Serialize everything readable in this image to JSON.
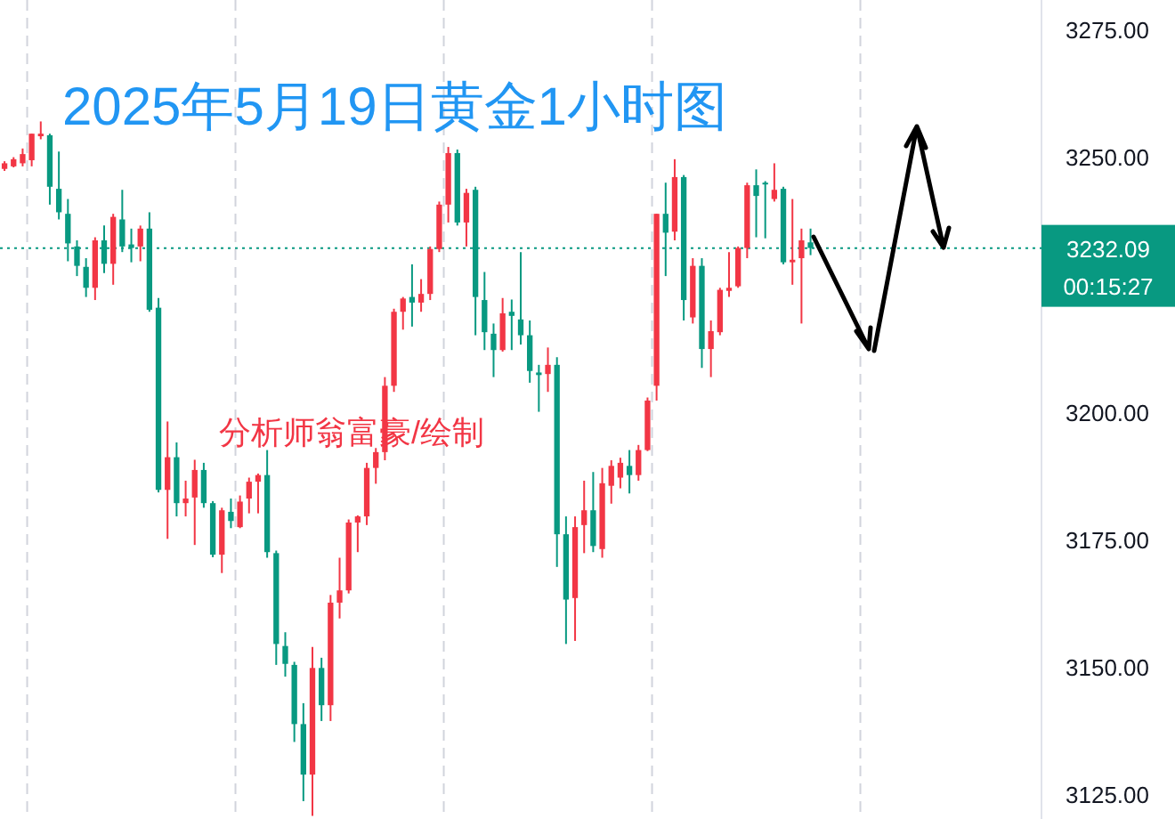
{
  "chart_data": {
    "type": "candlestick",
    "title": "2025年5月19日黄金1小时图",
    "annotations": [
      "分析师翁富豪/绘制",
      "00:15:27"
    ],
    "categories": [
      null,
      null,
      null,
      null,
      null,
      null,
      null,
      null,
      null,
      null,
      null,
      null,
      null,
      null,
      null,
      null,
      null,
      null,
      null,
      null,
      null,
      null,
      null,
      null,
      null,
      null,
      null,
      null,
      null,
      null,
      null,
      null,
      null,
      null,
      null,
      null,
      null,
      null,
      null,
      null,
      null,
      null,
      null,
      null,
      null,
      null,
      null,
      null,
      null,
      null,
      null,
      null,
      null,
      null,
      null,
      null,
      null,
      null,
      null,
      null,
      null,
      null,
      null,
      null,
      null,
      null,
      null,
      null,
      null,
      null,
      null,
      null,
      null,
      null,
      null,
      null,
      null,
      null,
      null,
      null,
      null,
      null,
      null,
      null,
      null,
      null,
      null,
      null,
      null,
      null,
      null,
      null,
      null,
      null,
      null,
      null,
      null,
      null,
      null,
      null,
      null,
      null,
      null,
      null,
      null,
      null,
      null,
      null,
      null,
      null,
      null,
      null,
      null,
      null,
      null
    ],
    "ohlc": [
      [
        3247.6,
        3249.1,
        3247.2,
        3248.7
      ],
      [
        3248.1,
        3249.9,
        3247.9,
        3249.5
      ],
      [
        3248.7,
        3251.6,
        3248.1,
        3250.5
      ],
      [
        3249.3,
        3254.5,
        3248.1,
        3254.5
      ],
      [
        3254.0,
        3256.9,
        3253.4,
        3254.5
      ],
      [
        3254.2,
        3254.5,
        3240.6,
        3244.1
      ],
      [
        3243.7,
        3251.0,
        3237.7,
        3239.1
      ],
      [
        3238.8,
        3241.7,
        3229.5,
        3233.0
      ],
      [
        3232.4,
        3233.6,
        3226.6,
        3228.6
      ],
      [
        3228.4,
        3230.1,
        3222.5,
        3224.3
      ],
      [
        3224.3,
        3234.2,
        3221.9,
        3233.6
      ],
      [
        3233.6,
        3236.5,
        3227.2,
        3229.0
      ],
      [
        3229.0,
        3238.8,
        3224.9,
        3238.2
      ],
      [
        3237.7,
        3243.5,
        3231.3,
        3232.4
      ],
      [
        3232.8,
        3235.9,
        3229.3,
        3232.1
      ],
      [
        3232.4,
        3236.5,
        3229.5,
        3235.9
      ],
      [
        3235.9,
        3239.1,
        3219.6,
        3220.0
      ],
      [
        3220.4,
        3222.3,
        3184.2,
        3184.7
      ],
      [
        3184.7,
        3198.1,
        3175.1,
        3191.1
      ],
      [
        3191.1,
        3194.0,
        3179.5,
        3182.1
      ],
      [
        3182.1,
        3186.5,
        3179.5,
        3183.0
      ],
      [
        3183.2,
        3190.6,
        3173.9,
        3188.6
      ],
      [
        3188.6,
        3190.0,
        3181.2,
        3182.1
      ],
      [
        3182.1,
        3182.5,
        3171.5,
        3172.0
      ],
      [
        3172.0,
        3181.2,
        3168.4,
        3180.7
      ],
      [
        3180.4,
        3183.0,
        3177.2,
        3178.6
      ],
      [
        3177.4,
        3183.6,
        3177.2,
        3182.4
      ],
      [
        3183.0,
        3187.1,
        3180.1,
        3186.3
      ],
      [
        3186.3,
        3187.9,
        3180.1,
        3187.6
      ],
      [
        3187.6,
        3192.5,
        3171.4,
        3172.5
      ],
      [
        3172.3,
        3172.8,
        3150.4,
        3154.5
      ],
      [
        3154.1,
        3156.8,
        3148.1,
        3150.6
      ],
      [
        3150.4,
        3151.0,
        3135.3,
        3138.8
      ],
      [
        3138.8,
        3142.9,
        3123.7,
        3128.9
      ],
      [
        3128.9,
        3153.9,
        3120.8,
        3149.8
      ],
      [
        3149.8,
        3151.8,
        3139.4,
        3142.5
      ],
      [
        3142.5,
        3164.1,
        3139.4,
        3162.6
      ],
      [
        3162.6,
        3171.4,
        3159.5,
        3165.0
      ],
      [
        3165.0,
        3178.9,
        3164.4,
        3178.3
      ],
      [
        3178.3,
        3179.7,
        3172.5,
        3179.5
      ],
      [
        3179.5,
        3190.0,
        3177.8,
        3189.0
      ],
      [
        3189.0,
        3192.9,
        3185.9,
        3192.1
      ],
      [
        3192.1,
        3206.8,
        3190.5,
        3205.1
      ],
      [
        3205.1,
        3220.2,
        3203.9,
        3219.6
      ],
      [
        3219.6,
        3222.5,
        3216.1,
        3222.2
      ],
      [
        3222.5,
        3228.9,
        3216.7,
        3221.4
      ],
      [
        3221.4,
        3226.0,
        3219.6,
        3223.1
      ],
      [
        3223.1,
        3232.4,
        3221.9,
        3231.9
      ],
      [
        3231.9,
        3241.2,
        3231.3,
        3240.6
      ],
      [
        3240.6,
        3251.9,
        3237.1,
        3250.7
      ],
      [
        3250.7,
        3251.4,
        3236.5,
        3237.1
      ],
      [
        3237.1,
        3243.7,
        3232.4,
        3242.9
      ],
      [
        3243.5,
        3244.1,
        3215.0,
        3222.5
      ],
      [
        3221.9,
        3227.4,
        3212.1,
        3215.6
      ],
      [
        3215.3,
        3217.3,
        3206.8,
        3212.1
      ],
      [
        3212.1,
        3222.3,
        3211.8,
        3219.3
      ],
      [
        3219.6,
        3222.0,
        3212.1,
        3218.8
      ],
      [
        3218.1,
        3231.3,
        3213.2,
        3215.0
      ],
      [
        3215.0,
        3217.9,
        3205.7,
        3208.0
      ],
      [
        3207.7,
        3209.2,
        3200.0,
        3207.2
      ],
      [
        3207.4,
        3212.6,
        3203.9,
        3209.2
      ],
      [
        3209.2,
        3210.7,
        3169.6,
        3176.0
      ],
      [
        3176.0,
        3179.5,
        3154.5,
        3163.2
      ],
      [
        3163.5,
        3179.5,
        3155.1,
        3177.4
      ],
      [
        3177.8,
        3186.5,
        3172.3,
        3180.7
      ],
      [
        3180.7,
        3188.2,
        3172.5,
        3173.7
      ],
      [
        3173.1,
        3189.0,
        3171.4,
        3186.0
      ],
      [
        3185.5,
        3190.5,
        3182.0,
        3189.4
      ],
      [
        3187.1,
        3191.0,
        3185.0,
        3190.0
      ],
      [
        3189.4,
        3192.5,
        3184.0,
        3187.6
      ],
      [
        3187.6,
        3193.5,
        3186.5,
        3192.5
      ],
      [
        3192.5,
        3202.8,
        3192.3,
        3202.2
      ],
      [
        3205.1,
        3238.8,
        3202.2,
        3238.8
      ],
      [
        3238.8,
        3244.9,
        3226.6,
        3235.1
      ],
      [
        3235.3,
        3249.5,
        3233.6,
        3246.0
      ],
      [
        3246.0,
        3246.4,
        3217.9,
        3221.9
      ],
      [
        3218.5,
        3230.1,
        3217.3,
        3228.6
      ],
      [
        3228.6,
        3230.1,
        3208.6,
        3212.3
      ],
      [
        3212.3,
        3217.9,
        3206.8,
        3215.8
      ],
      [
        3215.6,
        3224.3,
        3215.0,
        3223.9
      ],
      [
        3223.7,
        3231.3,
        3222.5,
        3224.3
      ],
      [
        3224.6,
        3232.4,
        3224.3,
        3232.1
      ],
      [
        3232.1,
        3244.9,
        3230.1,
        3244.4
      ],
      [
        3244.4,
        3247.5,
        3234.2,
        3242.3
      ],
      [
        3244.9,
        3245.2,
        3234.0,
        3244.6
      ],
      [
        3241.7,
        3248.7,
        3241.2,
        3243.5
      ],
      [
        3243.7,
        3244.1,
        3228.9,
        3229.3
      ],
      [
        3229.3,
        3241.7,
        3224.9,
        3229.8
      ],
      [
        3230.1,
        3235.9,
        3217.3,
        3233.6
      ],
      [
        3233.2,
        3235.9,
        3230.7,
        3232.1
      ],
      null,
      null,
      null,
      null,
      null,
      null,
      null,
      null,
      null,
      null,
      null,
      null,
      null,
      null,
      null,
      null,
      null,
      null,
      null,
      null,
      null,
      null,
      null,
      null,
      null
    ],
    "ylim": [
      3120.2,
      3280.7
    ],
    "yticks": [
      {
        "value": 3125,
        "label": "3125.00"
      },
      {
        "value": 3150,
        "label": "3150.00"
      },
      {
        "value": 3175,
        "label": "3175.00"
      },
      {
        "value": 3200,
        "label": "3200.00"
      },
      {
        "value": 3250,
        "label": "3250.00"
      },
      {
        "value": 3275,
        "label": "3275.00"
      }
    ],
    "ref_lines": [
      {
        "axis": "y",
        "value": 3232.09,
        "label": "3232.09",
        "color": "#089981",
        "line_style": "dotted"
      }
    ],
    "tick_labels": "y"
  }
}
